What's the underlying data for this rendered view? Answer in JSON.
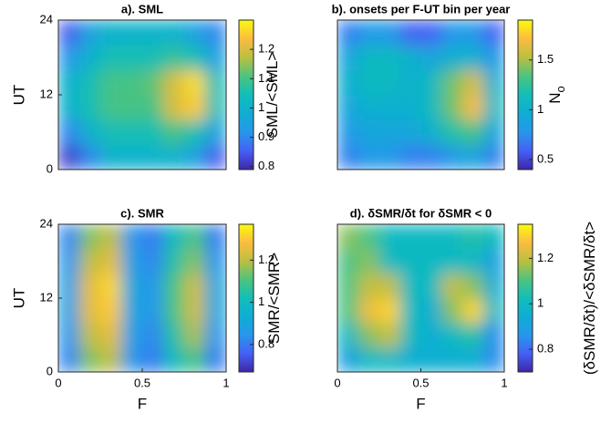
{
  "chart_data": [
    {
      "type": "heatmap",
      "title": "a). SML",
      "ylabel": "UT",
      "colorbar_label": "SML/<SML>",
      "colormap": "parula",
      "xlim": [
        0,
        1
      ],
      "ylim": [
        0,
        24
      ],
      "yticks": [
        0,
        12,
        24
      ],
      "clim": [
        0.79,
        1.3
      ],
      "cticks": [
        0.8,
        0.9,
        1,
        1.1,
        1.2
      ],
      "z": [
        [
          0.82,
          0.9,
          1.0,
          1.0,
          1.0,
          1.0,
          0.95,
          0.85
        ],
        [
          0.9,
          1.0,
          1.05,
          1.05,
          1.05,
          1.1,
          1.05,
          0.95
        ],
        [
          1.0,
          1.05,
          1.1,
          1.1,
          1.1,
          1.2,
          1.25,
          1.05
        ],
        [
          1.0,
          1.05,
          1.1,
          1.1,
          1.12,
          1.2,
          1.27,
          1.05
        ],
        [
          0.92,
          1.0,
          1.05,
          1.05,
          1.05,
          1.08,
          1.05,
          0.95
        ],
        [
          0.85,
          0.95,
          1.0,
          1.0,
          1.0,
          1.0,
          0.95,
          0.9
        ]
      ]
    },
    {
      "type": "heatmap",
      "title": "b). onsets per F-UT bin per year",
      "colorbar_label": "N",
      "colorbar_label_subscript": "o",
      "colormap": "parula",
      "xlim": [
        0,
        1
      ],
      "ylim": [
        0,
        24
      ],
      "clim": [
        0.4,
        1.9
      ],
      "cticks": [
        0.5,
        1,
        1.5
      ],
      "z": [
        [
          0.7,
          0.8,
          0.8,
          0.7,
          0.7,
          0.8,
          0.9,
          0.7
        ],
        [
          0.8,
          0.9,
          0.9,
          0.9,
          1.0,
          1.2,
          1.3,
          0.9
        ],
        [
          0.9,
          1.0,
          1.0,
          1.0,
          1.1,
          1.4,
          1.7,
          1.1
        ],
        [
          1.0,
          1.1,
          1.1,
          1.0,
          1.1,
          1.4,
          1.6,
          1.0
        ],
        [
          0.9,
          1.1,
          1.1,
          1.0,
          0.9,
          1.0,
          1.0,
          0.8
        ],
        [
          0.7,
          0.8,
          0.8,
          0.6,
          0.6,
          0.8,
          0.8,
          0.6
        ]
      ]
    },
    {
      "type": "heatmap",
      "title": "c). SMR",
      "xlabel": "F",
      "ylabel": "UT",
      "colorbar_label": "SMR/<SMR>",
      "colormap": "parula",
      "xlim": [
        0,
        1
      ],
      "ylim": [
        0,
        24
      ],
      "xticks": [
        0,
        0.5,
        1
      ],
      "yticks": [
        0,
        12,
        24
      ],
      "clim": [
        0.67,
        1.37
      ],
      "cticks": [
        0.8,
        1,
        1.2
      ],
      "z": [
        [
          0.82,
          1.15,
          1.2,
          0.85,
          0.8,
          1.0,
          1.1,
          0.8
        ],
        [
          0.85,
          1.2,
          1.25,
          0.88,
          0.82,
          1.05,
          1.18,
          0.85
        ],
        [
          0.88,
          1.25,
          1.3,
          0.9,
          0.85,
          1.1,
          1.22,
          0.9
        ],
        [
          0.88,
          1.25,
          1.32,
          0.9,
          0.85,
          1.1,
          1.22,
          0.9
        ],
        [
          0.85,
          1.2,
          1.25,
          0.88,
          0.82,
          1.05,
          1.15,
          0.85
        ],
        [
          0.82,
          1.15,
          1.2,
          0.85,
          0.8,
          1.0,
          1.1,
          0.8
        ]
      ]
    },
    {
      "type": "heatmap",
      "title": "d). δSMR/δt for δSMR < 0",
      "xlabel": "F",
      "colorbar_label": "(δSMR/δt)/<δSMR/δt>",
      "colormap": "parula",
      "xlim": [
        0,
        1
      ],
      "ylim": [
        0,
        24
      ],
      "xticks": [
        0,
        0.5,
        1
      ],
      "clim": [
        0.7,
        1.35
      ],
      "cticks": [
        0.8,
        1,
        1.2
      ],
      "z": [
        [
          0.9,
          1.0,
          1.0,
          0.95,
          0.95,
          0.95,
          0.95,
          0.85
        ],
        [
          1.0,
          1.15,
          1.2,
          1.0,
          0.95,
          1.0,
          1.05,
          0.85
        ],
        [
          1.1,
          1.25,
          1.3,
          1.0,
          0.95,
          1.15,
          1.3,
          1.0
        ],
        [
          1.1,
          1.2,
          1.2,
          1.0,
          1.0,
          1.2,
          1.15,
          0.95
        ],
        [
          1.1,
          1.15,
          1.0,
          1.0,
          1.0,
          1.0,
          1.0,
          0.9
        ],
        [
          1.15,
          1.1,
          1.0,
          1.0,
          1.0,
          1.0,
          1.05,
          1.0
        ]
      ]
    }
  ]
}
